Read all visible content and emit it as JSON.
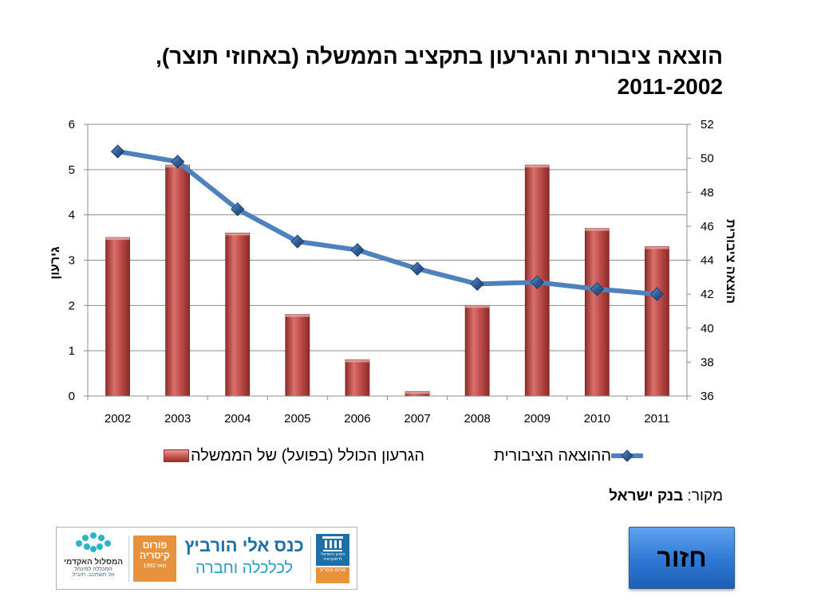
{
  "title": {
    "line1": "הוצאה ציבורית והגירעון בתקציב הממשלה (באחוזי תוצר),",
    "line2": "2011-2002"
  },
  "chart_data": {
    "type": "bar+line",
    "categories": [
      "2002",
      "2003",
      "2004",
      "2005",
      "2006",
      "2007",
      "2008",
      "2009",
      "2010",
      "2011"
    ],
    "series": [
      {
        "name": "הגרעון הכולל (בפועל) של הממשלה",
        "type": "bar",
        "axis": "left",
        "color": "#c0504d",
        "values": [
          3.5,
          5.1,
          3.6,
          1.8,
          0.8,
          0.1,
          2.0,
          5.1,
          3.7,
          3.3
        ]
      },
      {
        "name": "ההוצאה הציבורית",
        "type": "line",
        "axis": "right",
        "color": "#4f81bd",
        "values": [
          50.4,
          49.8,
          47.0,
          45.1,
          44.6,
          43.5,
          42.6,
          42.7,
          42.3,
          42.0
        ]
      }
    ],
    "ylabel_left": "גירעון",
    "ylabel_right": "הוצאה ציבורית",
    "ylim_left": [
      0,
      6
    ],
    "yticks_left": [
      0,
      1,
      2,
      3,
      4,
      5,
      6
    ],
    "ylim_right": [
      36,
      52
    ],
    "yticks_right": [
      36,
      38,
      40,
      42,
      44,
      46,
      48,
      50,
      52
    ],
    "grid": true,
    "legend_position": "bottom"
  },
  "source": {
    "prefix": "מקור: ",
    "name": "בנק ישראל"
  },
  "logos": {
    "left_name": "המסלול האקדמי",
    "left_sub": "המכללה למינהל",
    "left_tag": "אל תשתכב. תוביל",
    "forum_line1": "פורום",
    "forum_line2": "קיסריה",
    "forum_year": "מאז 1992",
    "conference_line1": "כנס אלי הורביץ",
    "conference_line2": "לכלכלה וחברה",
    "institute_name": "המכון הישראלי לדמוקרטיה",
    "institute_forum": "פורום קיסריה"
  },
  "back_button_label": "חזור"
}
